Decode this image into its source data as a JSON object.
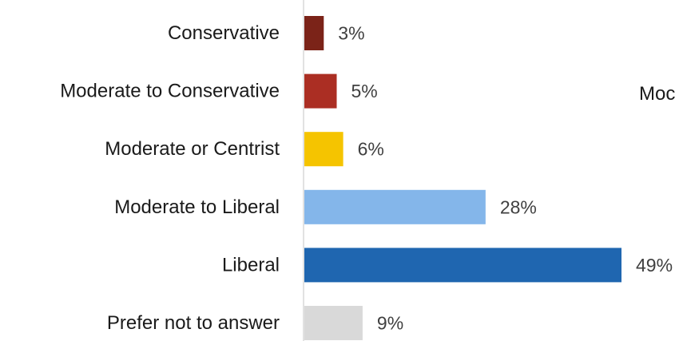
{
  "chart_data": {
    "type": "bar",
    "orientation": "horizontal",
    "categories": [
      "Conservative",
      "Moderate to Conservative",
      "Moderate or Centrist",
      "Moderate to Liberal",
      "Liberal",
      "Prefer not to answer"
    ],
    "values": [
      3,
      5,
      6,
      28,
      49,
      9
    ],
    "value_labels": [
      "3%",
      "5%",
      "6%",
      "28%",
      "49%",
      "9%"
    ],
    "colors": [
      "#7b2318",
      "#ab2e23",
      "#f5c400",
      "#84b6ea",
      "#1f66b0",
      "#d9d9d9"
    ],
    "xlim": [
      0,
      49
    ],
    "grid": false,
    "legend": "none"
  },
  "side_text": "Moc"
}
